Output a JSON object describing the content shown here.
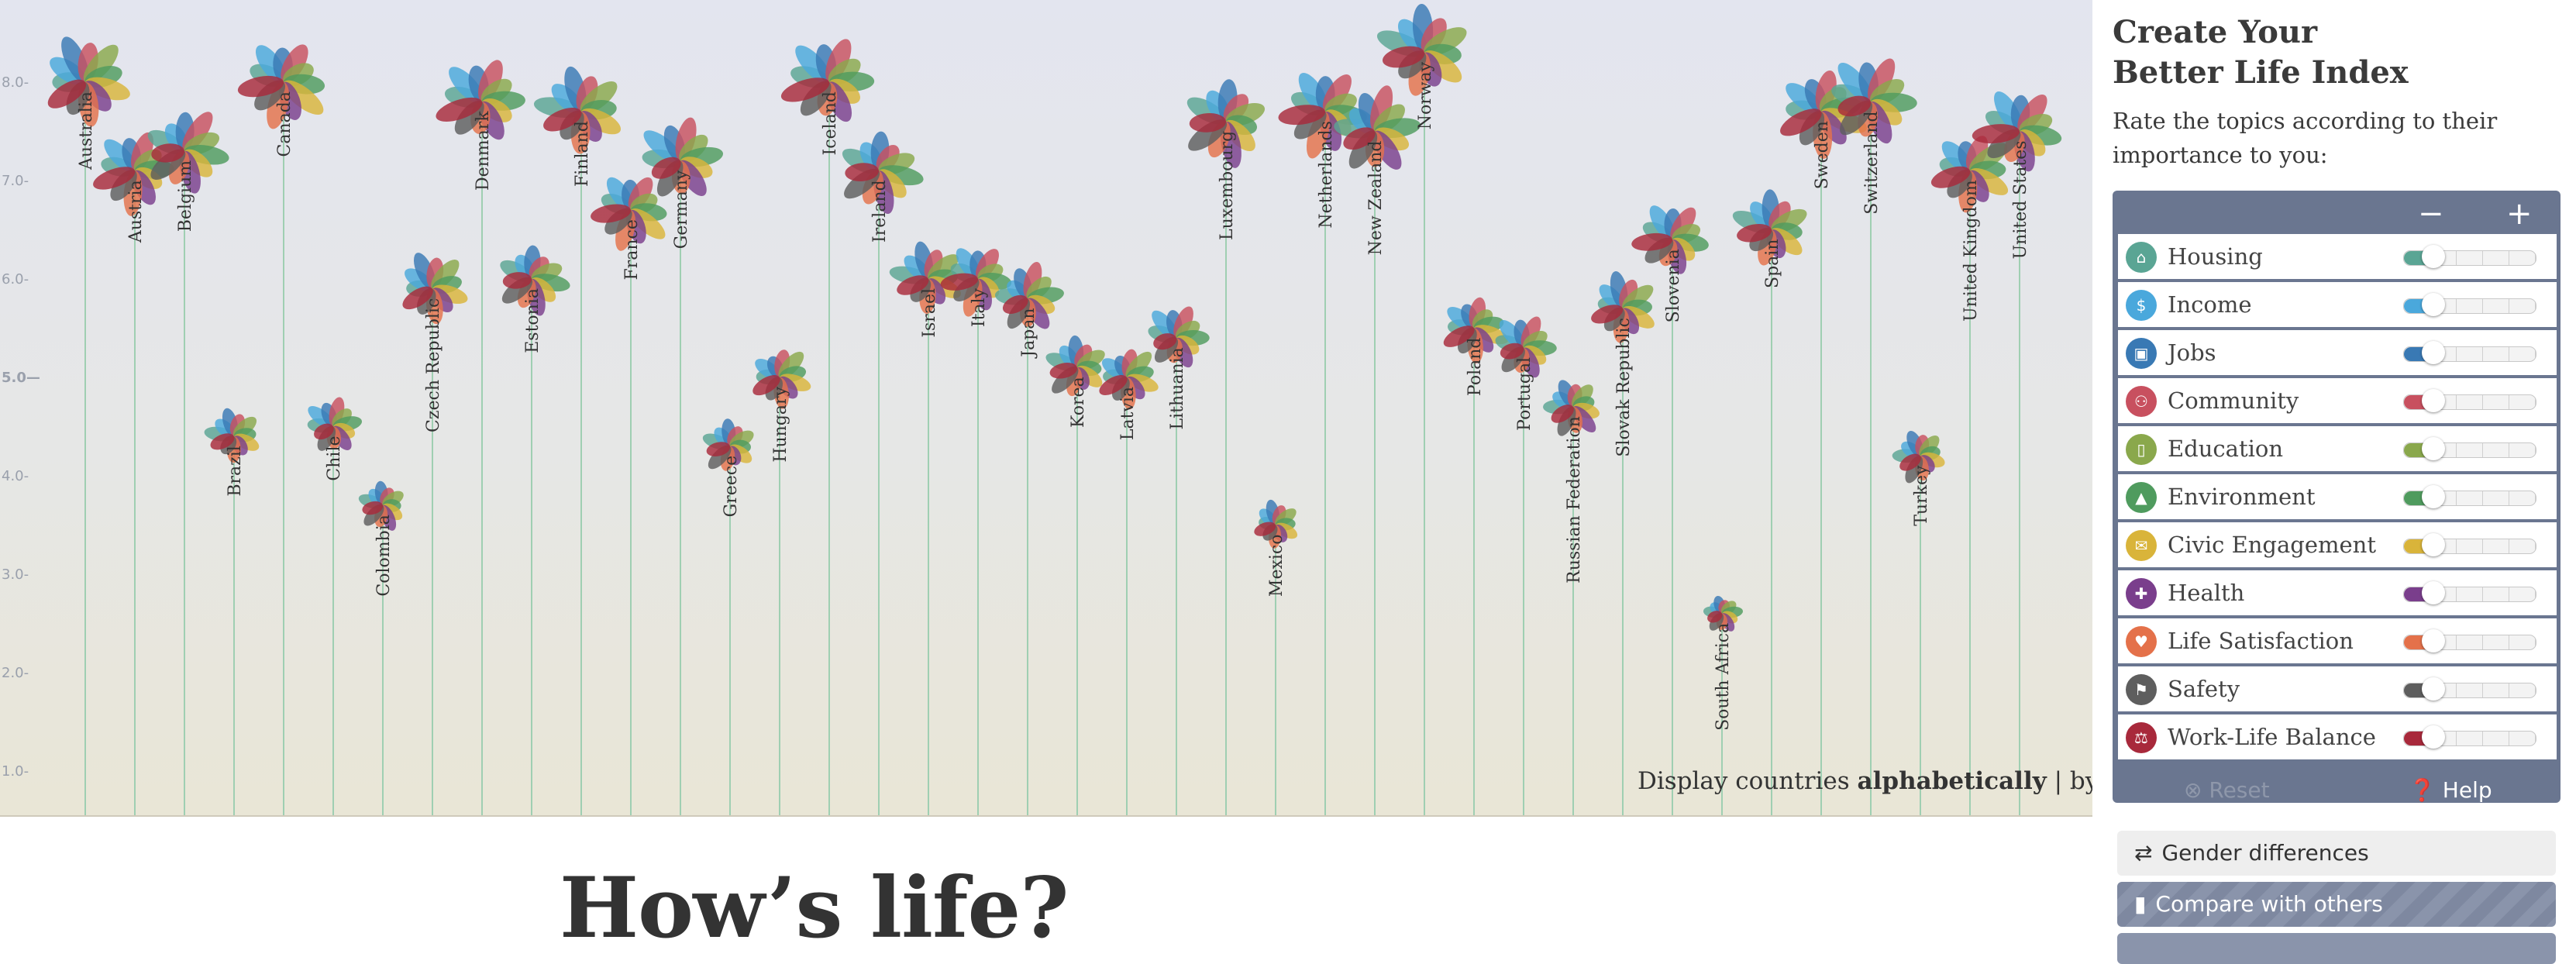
{
  "chart": {
    "y_ticks": [
      "1.0-",
      "2.0-",
      "3.0-",
      "4.0-",
      "5.0—",
      "6.0-",
      "7.0-",
      "8.0-"
    ],
    "petal_colors": [
      "#5aa594",
      "#4aa8dc",
      "#3979b4",
      "#c8505f",
      "#8aa84c",
      "#4f9b5e",
      "#d9b43a",
      "#7a3e8c",
      "#e4714a",
      "#5e5e5e",
      "#a8293b"
    ],
    "countries": [
      {
        "name": "Australia",
        "value": 8.0
      },
      {
        "name": "Austria",
        "value": 7.1
      },
      {
        "name": "Belgium",
        "value": 7.3
      },
      {
        "name": "Brazil",
        "value": 4.4
      },
      {
        "name": "Canada",
        "value": 8.0
      },
      {
        "name": "Chile",
        "value": 4.5
      },
      {
        "name": "Colombia",
        "value": 3.7
      },
      {
        "name": "Czech Republic",
        "value": 5.9
      },
      {
        "name": "Denmark",
        "value": 7.8
      },
      {
        "name": "Estonia",
        "value": 6.0
      },
      {
        "name": "Finland",
        "value": 7.7
      },
      {
        "name": "France",
        "value": 6.7
      },
      {
        "name": "Germany",
        "value": 7.2
      },
      {
        "name": "Greece",
        "value": 4.3
      },
      {
        "name": "Hungary",
        "value": 5.0
      },
      {
        "name": "Iceland",
        "value": 8.0
      },
      {
        "name": "Ireland",
        "value": 7.1
      },
      {
        "name": "Israel",
        "value": 6.0
      },
      {
        "name": "Italy",
        "value": 6.0
      },
      {
        "name": "Japan",
        "value": 5.8
      },
      {
        "name": "Korea",
        "value": 5.1
      },
      {
        "name": "Latvia",
        "value": 5.0
      },
      {
        "name": "Lithuania",
        "value": 5.4
      },
      {
        "name": "Luxembourg",
        "value": 7.6
      },
      {
        "name": "Mexico",
        "value": 3.5
      },
      {
        "name": "Netherlands",
        "value": 7.7
      },
      {
        "name": "New Zealand",
        "value": 7.5
      },
      {
        "name": "Norway",
        "value": 8.3
      },
      {
        "name": "Poland",
        "value": 5.5
      },
      {
        "name": "Portugal",
        "value": 5.3
      },
      {
        "name": "Russian Federation",
        "value": 4.7
      },
      {
        "name": "Slovak Republic",
        "value": 5.7
      },
      {
        "name": "Slovenia",
        "value": 6.4
      },
      {
        "name": "South Africa",
        "value": 2.6
      },
      {
        "name": "Spain",
        "value": 6.5
      },
      {
        "name": "Sweden",
        "value": 7.7
      },
      {
        "name": "Switzerland",
        "value": 7.8
      },
      {
        "name": "Turkey",
        "value": 4.2
      },
      {
        "name": "United Kingdom",
        "value": 7.1
      },
      {
        "name": "United States",
        "value": 7.5
      }
    ]
  },
  "sort_bar": {
    "prefix": "Display countries",
    "active": "alphabetically",
    "separator": "|",
    "alternative": "by rank"
  },
  "heading": "How’s life?",
  "panel": {
    "title_line1": "Create Your",
    "title_line2": "Better Life Index",
    "subtitle": "Rate the topics according to their importance to you:",
    "minus": "−",
    "plus": "+",
    "topics": [
      {
        "label": "Housing",
        "icon": "house-icon",
        "glyph": "⌂",
        "color": "#5aa594"
      },
      {
        "label": "Income",
        "icon": "money-icon",
        "glyph": "$",
        "color": "#4aa8dc"
      },
      {
        "label": "Jobs",
        "icon": "briefcase-icon",
        "glyph": "▣",
        "color": "#3979b4"
      },
      {
        "label": "Community",
        "icon": "people-icon",
        "glyph": "⚇",
        "color": "#c8505f"
      },
      {
        "label": "Education",
        "icon": "book-icon",
        "glyph": "▯",
        "color": "#8aa84c"
      },
      {
        "label": "Environment",
        "icon": "tree-icon",
        "glyph": "▲",
        "color": "#4f9b5e"
      },
      {
        "label": "Civic Engagement",
        "icon": "ballot-icon",
        "glyph": "✉",
        "color": "#d9b43a"
      },
      {
        "label": "Health",
        "icon": "cross-icon",
        "glyph": "✚",
        "color": "#7a3e8c"
      },
      {
        "label": "Life Satisfaction",
        "icon": "heart-icon",
        "glyph": "♥",
        "color": "#e4714a"
      },
      {
        "label": "Safety",
        "icon": "runner-icon",
        "glyph": "⚑",
        "color": "#5e5e5e"
      },
      {
        "label": "Work-Life Balance",
        "icon": "scales-icon",
        "glyph": "⚖",
        "color": "#a8293b"
      }
    ],
    "reset_label": "Reset",
    "help_label": "Help",
    "gender_label": "Gender differences",
    "compare_label": "Compare with others"
  }
}
